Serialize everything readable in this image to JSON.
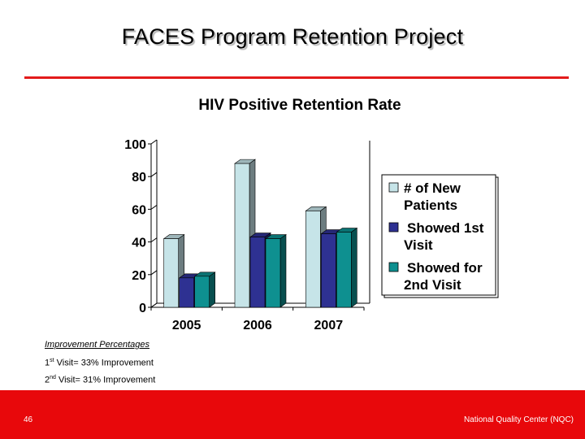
{
  "slide": {
    "title": "FACES Program Retention Project",
    "slide_number": "46",
    "footer_org": "National Quality Center (NQC)"
  },
  "notes": {
    "heading": "Improvement Percentages",
    "visit1_ord": "1",
    "visit1_sup": "st",
    "visit1_text": " Visit= 33% Improvement",
    "visit2_ord": "2",
    "visit2_sup": "nd",
    "visit2_text": " Visit= 31% Improvement"
  },
  "colors": {
    "accent": "#e31b1b",
    "footer": "#e8080b"
  },
  "chart_data": {
    "type": "bar",
    "title": "HIV Positive Retention Rate",
    "xlabel": "",
    "ylabel": "",
    "ylim": [
      0,
      100
    ],
    "yticks": [
      0,
      20,
      40,
      60,
      80,
      100
    ],
    "categories": [
      "2005",
      "2006",
      "2007"
    ],
    "series": [
      {
        "name": "# of New Patients",
        "values": [
          42,
          88,
          59
        ],
        "color": "#c6e4e8"
      },
      {
        "name": "Showed 1st Visit",
        "values": [
          18,
          43,
          45
        ],
        "color": "#2e3192"
      },
      {
        "name": "Showed for 2nd Visit",
        "values": [
          19,
          42,
          46
        ],
        "color": "#0e9090"
      }
    ],
    "legend_lines": [
      [
        "# of New",
        "Patients"
      ],
      [
        "Showed 1st",
        "Visit"
      ],
      [
        "Showed for",
        "2nd Visit"
      ]
    ],
    "grid": false,
    "legend_position": "right"
  }
}
